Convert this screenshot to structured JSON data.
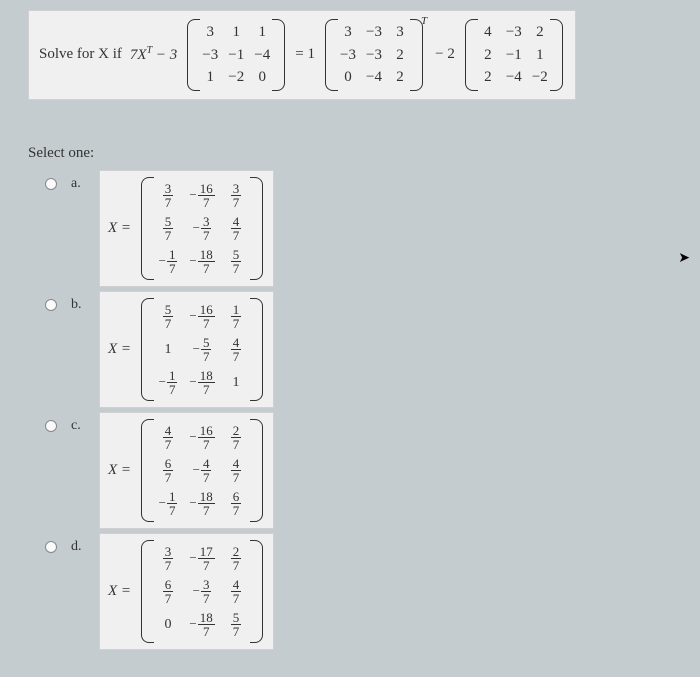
{
  "question": {
    "prefix": "Solve for X if",
    "expr_left": "7X",
    "super": "T",
    "minus3": " − 3",
    "matA": [
      [
        "3",
        "1",
        "1"
      ],
      [
        "−3",
        "−1",
        "−4"
      ],
      [
        "1",
        "−2",
        "0"
      ]
    ],
    "eq1": "= 1",
    "matB": [
      [
        "3",
        "−3",
        "3"
      ],
      [
        "−3",
        "−3",
        "2"
      ],
      [
        "0",
        "−4",
        "2"
      ]
    ],
    "superB": "T",
    "minus2": "− 2",
    "matC": [
      [
        "4",
        "−3",
        "2"
      ],
      [
        "2",
        "−1",
        "1"
      ],
      [
        "2",
        "−4",
        "−2"
      ]
    ]
  },
  "select_label": "Select one:",
  "options": [
    {
      "letter": "a.",
      "matrix": [
        [
          {
            "n": "3",
            "d": "7"
          },
          {
            "s": "−",
            "n": "16",
            "d": "7"
          },
          {
            "n": "3",
            "d": "7"
          }
        ],
        [
          {
            "n": "5",
            "d": "7"
          },
          {
            "s": "−",
            "n": "3",
            "d": "7"
          },
          {
            "n": "4",
            "d": "7"
          }
        ],
        [
          {
            "s": "−",
            "n": "1",
            "d": "7"
          },
          {
            "s": "−",
            "n": "18",
            "d": "7"
          },
          {
            "n": "5",
            "d": "7"
          }
        ]
      ]
    },
    {
      "letter": "b.",
      "matrix": [
        [
          {
            "n": "5",
            "d": "7"
          },
          {
            "s": "−",
            "n": "16",
            "d": "7"
          },
          {
            "n": "1",
            "d": "7"
          }
        ],
        [
          {
            "int": "1"
          },
          {
            "s": "−",
            "n": "5",
            "d": "7"
          },
          {
            "n": "4",
            "d": "7"
          }
        ],
        [
          {
            "s": "−",
            "n": "1",
            "d": "7"
          },
          {
            "s": "−",
            "n": "18",
            "d": "7"
          },
          {
            "int": "1"
          }
        ]
      ]
    },
    {
      "letter": "c.",
      "matrix": [
        [
          {
            "n": "4",
            "d": "7"
          },
          {
            "s": "−",
            "n": "16",
            "d": "7"
          },
          {
            "n": "2",
            "d": "7"
          }
        ],
        [
          {
            "n": "6",
            "d": "7"
          },
          {
            "s": "−",
            "n": "4",
            "d": "7"
          },
          {
            "n": "4",
            "d": "7"
          }
        ],
        [
          {
            "s": "−",
            "n": "1",
            "d": "7"
          },
          {
            "s": "−",
            "n": "18",
            "d": "7"
          },
          {
            "n": "6",
            "d": "7"
          }
        ]
      ]
    },
    {
      "letter": "d.",
      "matrix": [
        [
          {
            "n": "3",
            "d": "7"
          },
          {
            "s": "−",
            "n": "17",
            "d": "7"
          },
          {
            "n": "2",
            "d": "7"
          }
        ],
        [
          {
            "n": "6",
            "d": "7"
          },
          {
            "s": "−",
            "n": "3",
            "d": "7"
          },
          {
            "n": "4",
            "d": "7"
          }
        ],
        [
          {
            "int": "0"
          },
          {
            "s": "−",
            "n": "18",
            "d": "7"
          },
          {
            "n": "5",
            "d": "7"
          }
        ]
      ]
    }
  ],
  "x_equals": "X =",
  "colors": {
    "page_bg": "#c5ccd0",
    "box_bg": "#f0f0f0",
    "box_border": "#d0d0d0",
    "text": "#333333"
  }
}
